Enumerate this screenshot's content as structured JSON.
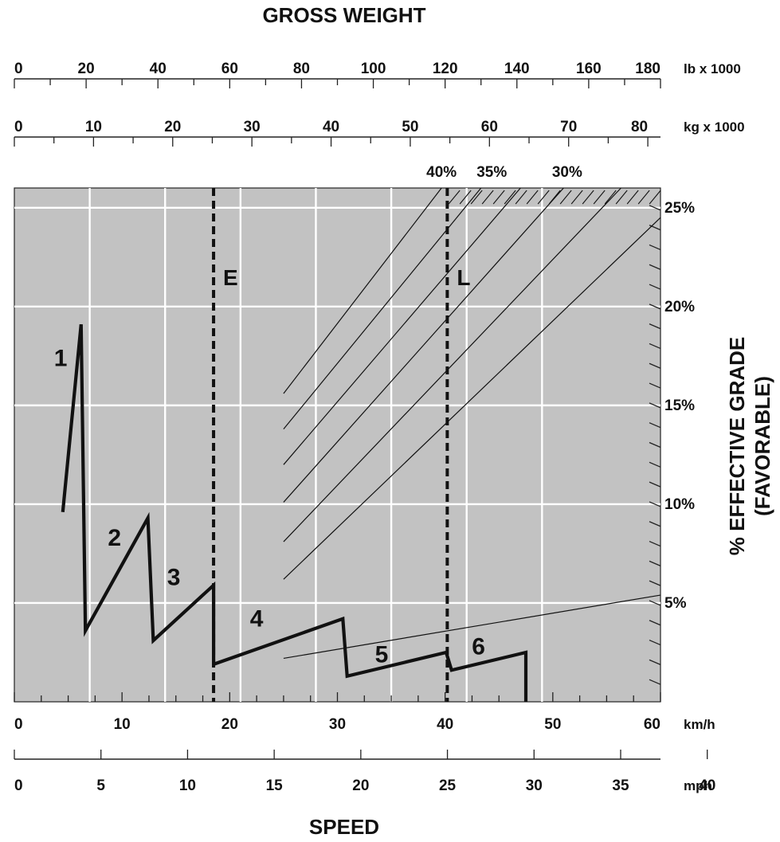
{
  "chart_data": {
    "type": "line",
    "title_top": "GROSS WEIGHT",
    "title_bottom": "SPEED",
    "right_axis_title": "% EFFECTIVE GRADE",
    "right_axis_subtitle": "(FAVORABLE)",
    "top_axis_lb": {
      "unit": "lb x 1000",
      "range": [
        0,
        180
      ],
      "ticks": [
        "0",
        "20",
        "40",
        "60",
        "80",
        "100",
        "120",
        "140",
        "160",
        "180"
      ],
      "tick_values": [
        0,
        20,
        40,
        60,
        80,
        100,
        120,
        140,
        160,
        180
      ],
      "minor_step": 10
    },
    "top_axis_kg": {
      "unit": "kg x 1000",
      "range": [
        0,
        81.6
      ],
      "ticks": [
        "0",
        "10",
        "20",
        "30",
        "40",
        "50",
        "60",
        "70",
        "80"
      ],
      "tick_values": [
        0,
        10,
        20,
        30,
        40,
        50,
        60,
        70,
        80
      ],
      "minor_step": 5
    },
    "x_axis_kmh": {
      "unit": "km/h",
      "range": [
        0,
        60
      ],
      "ticks": [
        "0",
        "10",
        "20",
        "30",
        "40",
        "50",
        "60"
      ],
      "tick_values": [
        0,
        10,
        20,
        30,
        40,
        50,
        60
      ],
      "minor_step": 2.5
    },
    "x_axis_mph": {
      "unit": "mph",
      "range": [
        0,
        37.3
      ],
      "ticks": [
        "0",
        "5",
        "10",
        "15",
        "20",
        "25",
        "30",
        "35",
        "40"
      ],
      "tick_values": [
        0,
        5,
        10,
        15,
        20,
        25,
        30,
        35,
        40
      ]
    },
    "y_axis_grade": {
      "range": [
        0,
        26
      ],
      "ticks": [
        "5%",
        "10%",
        "15%",
        "20%",
        "25%"
      ],
      "tick_values": [
        5,
        10,
        15,
        20,
        25
      ],
      "minor_step": 1
    },
    "grid": true,
    "grid_x_kmh": [
      7,
      14,
      21,
      28,
      35,
      42,
      49
    ],
    "grid_y_grade": [
      5,
      10,
      15,
      20,
      25
    ],
    "rimpull_curve": [
      {
        "kmh": 4.5,
        "grade": 9.6
      },
      {
        "kmh": 6.2,
        "grade": 19.1
      },
      {
        "kmh": 6.6,
        "grade": 3.6
      },
      {
        "kmh": 12.4,
        "grade": 9.3
      },
      {
        "kmh": 12.9,
        "grade": 3.1
      },
      {
        "kmh": 18.5,
        "grade": 5.9
      },
      {
        "kmh": 18.5,
        "grade": 1.9
      },
      {
        "kmh": 30.5,
        "grade": 4.2
      },
      {
        "kmh": 30.9,
        "grade": 1.3
      },
      {
        "kmh": 40.1,
        "grade": 2.5
      },
      {
        "kmh": 40.6,
        "grade": 1.6
      },
      {
        "kmh": 47.5,
        "grade": 2.5
      },
      {
        "kmh": 47.5,
        "grade": 0
      }
    ],
    "gear_labels": [
      {
        "text": "1",
        "kmh": 4.3,
        "grade": 17.0
      },
      {
        "text": "2",
        "kmh": 9.3,
        "grade": 7.9
      },
      {
        "text": "3",
        "kmh": 14.8,
        "grade": 5.9
      },
      {
        "text": "4",
        "kmh": 22.5,
        "grade": 3.8
      },
      {
        "text": "5",
        "kmh": 34.1,
        "grade": 2.0
      },
      {
        "text": "6",
        "kmh": 43.1,
        "grade": 2.4
      }
    ],
    "markers": [
      {
        "label": "E",
        "kmh": 18.5
      },
      {
        "label": "L",
        "kmh": 40.2
      }
    ],
    "weight_percent_labels": [
      "40%",
      "35%",
      "30%"
    ],
    "weight_percent_positions_lb": [
      119,
      133,
      154
    ],
    "grade_lines": [
      {
        "from": {
          "kmh": 25.0,
          "grade": 15.6
        },
        "to": {
          "lb": 119,
          "grade": 26
        }
      },
      {
        "from": {
          "kmh": 25.0,
          "grade": 13.8
        },
        "to": {
          "lb": 130,
          "grade": 26
        }
      },
      {
        "from": {
          "kmh": 25.0,
          "grade": 12.0
        },
        "to": {
          "lb": 141,
          "grade": 26
        }
      },
      {
        "from": {
          "kmh": 25.0,
          "grade": 10.1
        },
        "to": {
          "lb": 153,
          "grade": 26
        }
      },
      {
        "from": {
          "kmh": 25.0,
          "grade": 8.1
        },
        "to": {
          "lb": 169,
          "grade": 26
        }
      },
      {
        "from": {
          "kmh": 25.0,
          "grade": 6.2
        },
        "to": {
          "lb": 180,
          "grade": 24.5
        }
      },
      {
        "from": {
          "kmh": 25.0,
          "grade": 2.2
        },
        "to": {
          "lb": 180,
          "grade": 5.4
        }
      }
    ]
  }
}
